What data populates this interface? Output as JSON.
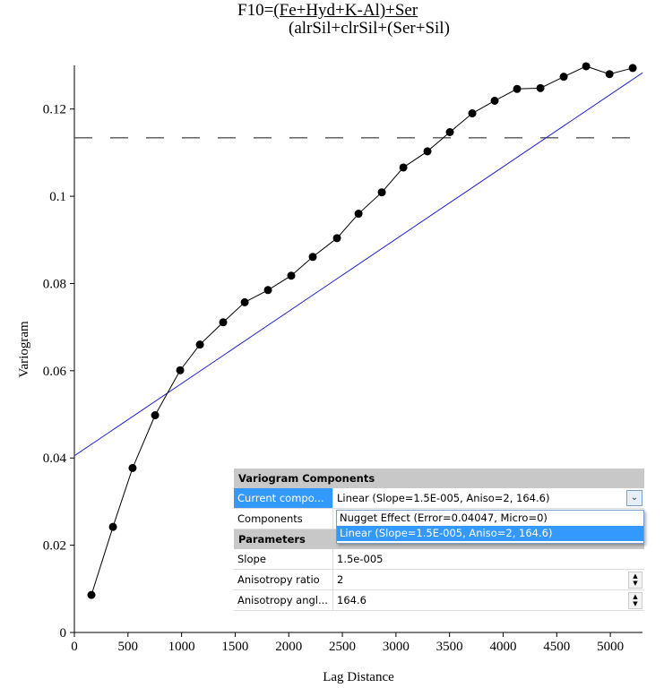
{
  "chart_data": {
    "type": "scatter",
    "title_line1_prefix": "F10=",
    "title_line1_numerator": "(Fe+Hyd+K-Al)+Ser",
    "title_line2": "(alrSil+clrSil+(Ser+Sil)",
    "xlabel": "Lag Distance",
    "ylabel": "Variogram",
    "xlim": [
      0,
      5300
    ],
    "ylim": [
      0,
      0.13
    ],
    "xticks": [
      0,
      500,
      1000,
      1500,
      2000,
      2500,
      3000,
      3500,
      4000,
      4500,
      5000
    ],
    "yticks": [
      0,
      0.02,
      0.04,
      0.06,
      0.08,
      0.1,
      0.12
    ],
    "ytick_labels": [
      "0",
      "0.02",
      "0.04",
      "0.06",
      "0.08",
      "0.1",
      "0.12"
    ],
    "grid": false,
    "experimental": {
      "x": [
        159,
        360,
        543,
        753,
        987,
        1171,
        1388,
        1589,
        1806,
        2023,
        2224,
        2450,
        2651,
        2868,
        3069,
        3294,
        3503,
        3712,
        3921,
        4130,
        4348,
        4565,
        4774,
        4992,
        5209
      ],
      "y": [
        0.0086,
        0.0242,
        0.0377,
        0.0498,
        0.0601,
        0.066,
        0.0711,
        0.0757,
        0.0785,
        0.0818,
        0.0861,
        0.0904,
        0.096,
        0.1009,
        0.1066,
        0.1103,
        0.1147,
        0.119,
        0.1219,
        0.1246,
        0.1248,
        0.1274,
        0.1298,
        0.128,
        0.1294
      ],
      "color": "#000000"
    },
    "model_line": {
      "x": [
        0,
        5300
      ],
      "y": [
        0.0405,
        0.1283
      ],
      "color": "#2222cc"
    },
    "sill": {
      "y": 0.1134,
      "style": "dashed",
      "color": "#555555"
    }
  },
  "panel": {
    "section1": "Variogram Components",
    "current_label": "Current compo...",
    "current_value": "Linear (Slope=1.5E-005, Aniso=2, 164.6)",
    "components_label": "Components",
    "section2": "Parameters",
    "slope_label": "Slope",
    "slope_value": "1.5e-005",
    "aniso_ratio_label": "Anisotropy ratio",
    "aniso_ratio_value": "2",
    "aniso_angle_label": "Anisotropy angl...",
    "aniso_angle_value": "164.6",
    "dropdown_options": [
      "Nugget Effect (Error=0.04047, Micro=0)",
      "Linear (Slope=1.5E-005, Aniso=2, 164.6)"
    ],
    "selected_color": "#3399ff"
  }
}
